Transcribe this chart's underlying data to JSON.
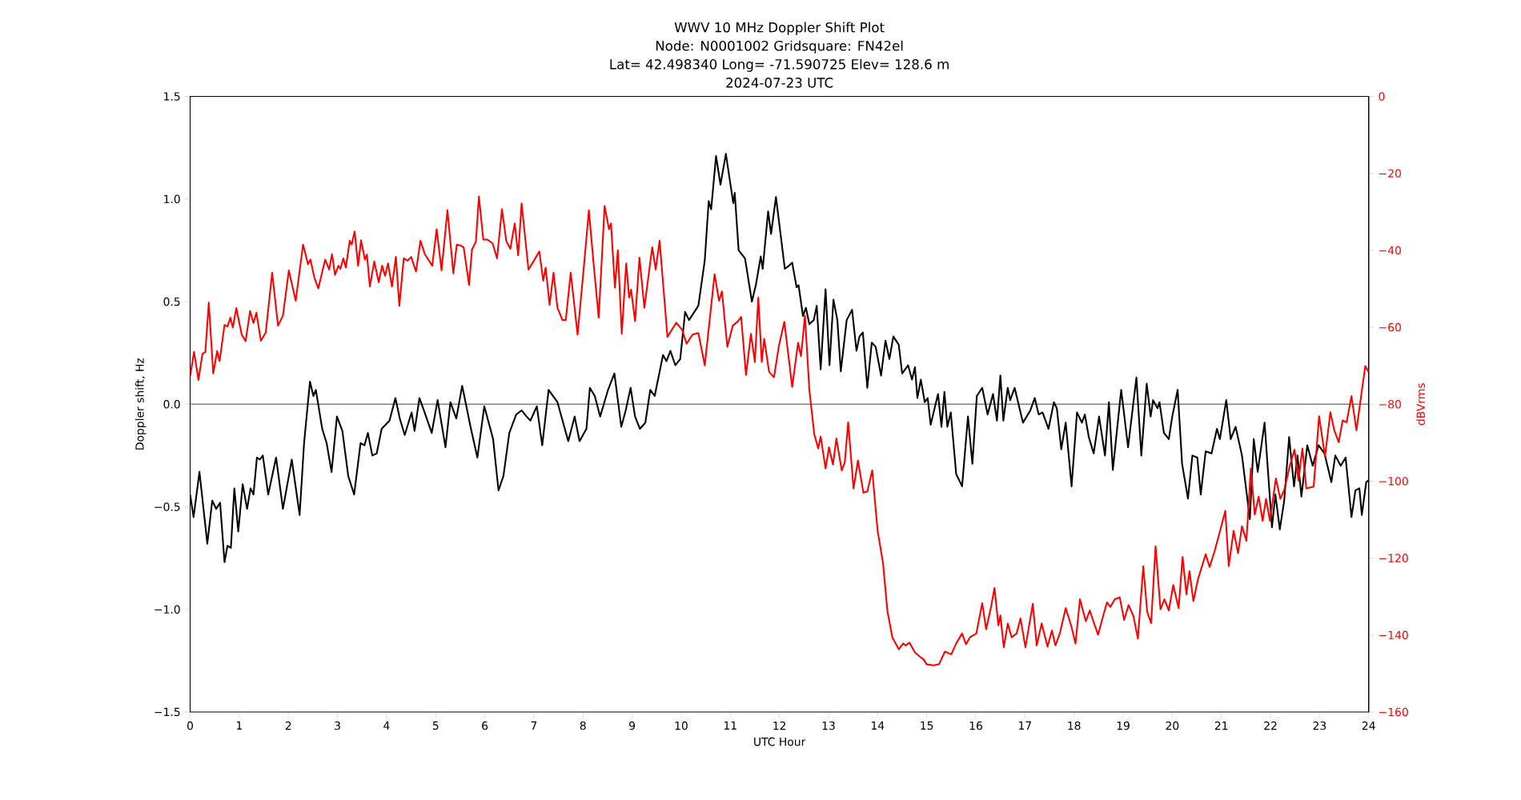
{
  "chart_data": {
    "type": "line",
    "title": "WWV 10 MHz Doppler Shift Plot",
    "subtitle": "Node:  N0001002     Gridsquare:  FN42el",
    "annotations": [
      "Lat= 42.498340    Long= -71.590725    Elev= 128.6 m",
      "2024-07-23  UTC"
    ],
    "xlabel": "UTC Hour",
    "ylabel": "Doppler shift, Hz",
    "y2label": "dBVrms",
    "xlim": [
      0,
      24
    ],
    "xticks": [
      0,
      1,
      2,
      3,
      4,
      5,
      6,
      7,
      8,
      9,
      10,
      11,
      12,
      13,
      14,
      15,
      16,
      17,
      18,
      19,
      20,
      21,
      22,
      23,
      24
    ],
    "ylim": [
      -1.5,
      1.5
    ],
    "yticks": [
      {
        "value": -1.5,
        "label": "−1.5"
      },
      {
        "value": -1.0,
        "label": "−1.0"
      },
      {
        "value": -0.5,
        "label": "−0.5"
      },
      {
        "value": 0,
        "label": "0.0"
      },
      {
        "value": 0.5,
        "label": "0.5"
      },
      {
        "value": 1.0,
        "label": "1.0"
      },
      {
        "value": 1.5,
        "label": "1.5"
      }
    ],
    "y2lim": [
      -160,
      0
    ],
    "y2ticks": [
      {
        "value": -160,
        "label": "−160"
      },
      {
        "value": -140,
        "label": "−140"
      },
      {
        "value": -120,
        "label": "−120"
      },
      {
        "value": -100,
        "label": "−100"
      },
      {
        "value": -80,
        "label": "−80"
      },
      {
        "value": -60,
        "label": "−60"
      },
      {
        "value": -40,
        "label": "−40"
      },
      {
        "value": -20,
        "label": "−20"
      },
      0
    ],
    "ref_lines": [
      {
        "axis": "y",
        "value": 0,
        "color": "#808080"
      }
    ],
    "series": [
      {
        "color": "#000000",
        "axis": "y",
        "x": [
          0,
          0.07,
          0.19,
          0.35,
          0.45,
          0.53,
          0.61,
          0.7,
          0.76,
          0.83,
          0.9,
          0.98,
          1.07,
          1.16,
          1.23,
          1.29,
          1.36,
          1.42,
          1.48,
          1.59,
          1.75,
          1.89,
          2.07,
          2.23,
          2.32,
          2.44,
          2.51,
          2.56,
          2.69,
          2.78,
          2.88,
          2.99,
          3.1,
          3.22,
          3.34,
          3.47,
          3.55,
          3.62,
          3.71,
          3.8,
          3.9,
          4.06,
          4.18,
          4.27,
          4.37,
          4.51,
          4.57,
          4.67,
          4.76,
          4.92,
          5.04,
          5.2,
          5.3,
          5.42,
          5.54,
          5.71,
          5.85,
          5.99,
          6.17,
          6.28,
          6.38,
          6.5,
          6.64,
          6.75,
          6.85,
          6.93,
          7.06,
          7.17,
          7.3,
          7.48,
          7.7,
          7.83,
          7.93,
          8.07,
          8.14,
          8.24,
          8.35,
          8.51,
          8.64,
          8.78,
          8.87,
          8.97,
          9.06,
          9.16,
          9.27,
          9.37,
          9.46,
          9.63,
          9.7,
          9.78,
          9.88,
          9.98,
          10.08,
          10.16,
          10.35,
          10.48,
          10.56,
          10.61,
          10.71,
          10.8,
          10.91,
          11.06,
          11.09,
          11.17,
          11.3,
          11.44,
          11.52,
          11.62,
          11.66,
          11.77,
          11.83,
          11.93,
          12.11,
          12.17,
          12.26,
          12.35,
          12.39,
          12.48,
          12.54,
          12.61,
          12.7,
          12.76,
          12.84,
          12.94,
          13.02,
          13.1,
          13.18,
          13.25,
          13.37,
          13.48,
          13.57,
          13.63,
          13.7,
          13.79,
          13.88,
          13.96,
          14.07,
          14.16,
          14.24,
          14.32,
          14.43,
          14.5,
          14.62,
          14.7,
          14.76,
          14.81,
          14.88,
          14.96,
          15.02,
          15.08,
          15.16,
          15.23,
          15.3,
          15.36,
          15.42,
          15.49,
          15.6,
          15.72,
          15.84,
          15.93,
          16.02,
          16.13,
          16.24,
          16.35,
          16.43,
          16.5,
          16.56,
          16.65,
          16.7,
          16.79,
          16.96,
          17.11,
          17.2,
          17.28,
          17.36,
          17.48,
          17.59,
          17.65,
          17.74,
          17.83,
          17.95,
          18.06,
          18.16,
          18.22,
          18.3,
          18.4,
          18.51,
          18.63,
          18.71,
          18.79,
          18.96,
          19.1,
          19.27,
          19.37,
          19.48,
          19.56,
          19.61,
          19.7,
          19.74,
          19.83,
          19.93,
          20.0,
          20.11,
          20.2,
          20.32,
          20.41,
          20.51,
          20.58,
          20.68,
          20.8,
          20.91,
          20.97,
          21.1,
          21.19,
          21.29,
          21.42,
          21.58,
          21.66,
          21.74,
          21.88,
          22.03,
          22.1,
          22.19,
          22.28,
          22.38,
          22.48,
          22.55,
          22.63,
          22.75,
          22.86,
          22.98,
          23.1,
          23.24,
          23.32,
          23.43,
          23.53,
          23.65,
          23.73,
          23.81,
          23.86,
          23.95,
          24
        ],
        "values": [
          -0.44,
          -0.55,
          -0.33,
          -0.68,
          -0.47,
          -0.51,
          -0.48,
          -0.77,
          -0.69,
          -0.7,
          -0.41,
          -0.62,
          -0.39,
          -0.51,
          -0.41,
          -0.44,
          -0.26,
          -0.27,
          -0.25,
          -0.44,
          -0.26,
          -0.51,
          -0.27,
          -0.54,
          -0.19,
          0.11,
          0.04,
          0.07,
          -0.12,
          -0.19,
          -0.33,
          -0.06,
          -0.13,
          -0.35,
          -0.44,
          -0.19,
          -0.2,
          -0.14,
          -0.25,
          -0.24,
          -0.12,
          -0.08,
          0.03,
          -0.07,
          -0.15,
          -0.04,
          -0.13,
          0.03,
          -0.03,
          -0.14,
          0.02,
          -0.21,
          0.01,
          -0.07,
          0.09,
          -0.11,
          -0.26,
          -0.01,
          -0.17,
          -0.42,
          -0.35,
          -0.14,
          -0.05,
          -0.03,
          -0.06,
          -0.08,
          -0.01,
          -0.2,
          0.07,
          0.01,
          -0.18,
          -0.06,
          -0.18,
          -0.12,
          0.08,
          0.04,
          -0.06,
          0.07,
          0.15,
          -0.11,
          -0.03,
          0.08,
          -0.06,
          -0.12,
          -0.09,
          0.07,
          0.04,
          0.24,
          0.21,
          0.26,
          0.19,
          0.22,
          0.45,
          0.41,
          0.48,
          0.7,
          0.99,
          0.95,
          1.21,
          1.07,
          1.22,
          0.98,
          1.03,
          0.75,
          0.71,
          0.5,
          0.58,
          0.72,
          0.66,
          0.94,
          0.83,
          1.01,
          0.66,
          0.67,
          0.69,
          0.57,
          0.58,
          0.43,
          0.47,
          0.39,
          0.41,
          0.48,
          0.17,
          0.56,
          0.19,
          0.51,
          0.41,
          0.16,
          0.41,
          0.46,
          0.26,
          0.33,
          0.35,
          0.08,
          0.3,
          0.28,
          0.14,
          0.31,
          0.22,
          0.33,
          0.29,
          0.15,
          0.19,
          0.12,
          0.18,
          0.03,
          0.12,
          0.01,
          0.03,
          -0.1,
          -0.02,
          0.05,
          -0.11,
          0.06,
          -0.11,
          -0.04,
          -0.34,
          -0.4,
          -0.06,
          -0.29,
          0.04,
          0.08,
          -0.05,
          0.05,
          -0.08,
          0.14,
          -0.08,
          0.08,
          0.02,
          0.08,
          -0.09,
          -0.03,
          0.03,
          -0.05,
          -0.04,
          -0.12,
          0.01,
          -0.02,
          -0.22,
          -0.09,
          -0.4,
          -0.04,
          -0.09,
          -0.05,
          -0.16,
          -0.24,
          -0.06,
          -0.25,
          0.01,
          -0.32,
          0.07,
          -0.21,
          0.13,
          -0.25,
          0.1,
          -0.06,
          0.02,
          -0.02,
          0.01,
          -0.14,
          -0.17,
          -0.06,
          0.07,
          -0.29,
          -0.46,
          -0.25,
          -0.26,
          -0.44,
          -0.23,
          -0.24,
          -0.12,
          -0.17,
          0.02,
          -0.17,
          -0.11,
          -0.25,
          -0.56,
          -0.17,
          -0.33,
          -0.09,
          -0.6,
          -0.44,
          -0.61,
          -0.47,
          -0.16,
          -0.4,
          -0.25,
          -0.45,
          -0.2,
          -0.3,
          -0.2,
          -0.24,
          -0.38,
          -0.25,
          -0.3,
          -0.26,
          -0.55,
          -0.42,
          -0.41,
          -0.54,
          -0.38,
          -0.37
        ]
      },
      {
        "color": "#ff0000",
        "axis": "y2",
        "x": [
          0,
          0.08,
          0.17,
          0.25,
          0.31,
          0.38,
          0.47,
          0.55,
          0.6,
          0.7,
          0.76,
          0.82,
          0.87,
          0.94,
          1.05,
          1.13,
          1.22,
          1.29,
          1.35,
          1.44,
          1.54,
          1.67,
          1.79,
          1.89,
          2.01,
          2.15,
          2.3,
          2.4,
          2.45,
          2.53,
          2.61,
          2.75,
          2.83,
          2.89,
          2.95,
          3.02,
          3.06,
          3.12,
          3.17,
          3.25,
          3.29,
          3.35,
          3.42,
          3.48,
          3.56,
          3.6,
          3.66,
          3.75,
          3.84,
          3.91,
          3.97,
          4.03,
          4.11,
          4.19,
          4.26,
          4.35,
          4.43,
          4.5,
          4.6,
          4.69,
          4.78,
          4.93,
          5.02,
          5.12,
          5.24,
          5.36,
          5.43,
          5.5,
          5.57,
          5.68,
          5.74,
          5.82,
          5.88,
          5.97,
          6.05,
          6.16,
          6.25,
          6.35,
          6.44,
          6.52,
          6.61,
          6.68,
          6.75,
          6.89,
          7.0,
          7.11,
          7.19,
          7.24,
          7.32,
          7.4,
          7.48,
          7.58,
          7.65,
          7.75,
          7.89,
          8.02,
          8.12,
          8.22,
          8.32,
          8.44,
          8.53,
          8.57,
          8.65,
          8.71,
          8.79,
          8.88,
          8.94,
          8.98,
          9.06,
          9.15,
          9.25,
          9.41,
          9.48,
          9.56,
          9.72,
          9.9,
          10.02,
          10.11,
          10.23,
          10.35,
          10.48,
          10.58,
          10.68,
          10.77,
          10.83,
          10.94,
          11.05,
          11.16,
          11.22,
          11.32,
          11.42,
          11.5,
          11.57,
          11.64,
          11.69,
          11.79,
          11.89,
          11.99,
          12.1,
          12.26,
          12.38,
          12.44,
          12.52,
          12.61,
          12.71,
          12.79,
          12.84,
          12.94,
          13.01,
          13.09,
          13.16,
          13.27,
          13.33,
          13.4,
          13.51,
          13.6,
          13.71,
          13.79,
          13.89,
          14.0,
          14.11,
          14.2,
          14.3,
          14.43,
          14.52,
          14.57,
          14.65,
          14.76,
          14.86,
          14.94,
          15.0,
          15.14,
          15.25,
          15.37,
          15.5,
          15.6,
          15.72,
          15.8,
          15.88,
          16.01,
          16.13,
          16.21,
          16.3,
          16.38,
          16.46,
          16.5,
          16.57,
          16.65,
          16.73,
          16.83,
          16.91,
          17.01,
          17.16,
          17.24,
          17.34,
          17.46,
          17.55,
          17.62,
          17.71,
          17.83,
          17.94,
          18.03,
          18.12,
          18.24,
          18.32,
          18.4,
          18.49,
          18.57,
          18.67,
          18.74,
          18.83,
          18.93,
          19.02,
          19.11,
          19.21,
          19.3,
          19.41,
          19.49,
          19.57,
          19.66,
          19.76,
          19.84,
          19.93,
          20.02,
          20.13,
          20.21,
          20.29,
          20.35,
          20.43,
          20.52,
          20.68,
          20.76,
          20.86,
          20.97,
          21.08,
          21.15,
          21.25,
          21.34,
          21.42,
          21.51,
          21.6,
          21.68,
          21.76,
          21.84,
          21.91,
          21.99,
          22.11,
          22.2,
          22.28,
          22.4,
          22.49,
          22.57,
          22.65,
          22.73,
          22.88,
          22.99,
          23.11,
          23.22,
          23.3,
          23.39,
          23.47,
          23.55,
          23.65,
          23.75,
          23.93,
          24
        ],
        "values": [
          -72.7,
          -66.4,
          -73.7,
          -66.9,
          -66.4,
          -53.6,
          -72,
          -66.2,
          -68.8,
          -59.4,
          -59.8,
          -57.5,
          -60.1,
          -55,
          -61.9,
          -63.6,
          -55.8,
          -58.9,
          -56.2,
          -63.5,
          -61.4,
          -45.8,
          -59.6,
          -57,
          -45.2,
          -53.1,
          -38.5,
          -43.6,
          -42.4,
          -47.1,
          -49.9,
          -42.4,
          -45,
          -41,
          -46.4,
          -44,
          -44.8,
          -42.1,
          -44.5,
          -37.5,
          -38.5,
          -35.1,
          -44,
          -37.4,
          -42.4,
          -41.1,
          -49.4,
          -42.9,
          -48.3,
          -44,
          -46.6,
          -43.4,
          -49.4,
          -41.7,
          -54.4,
          -42.1,
          -42.7,
          -41.7,
          -45.5,
          -37.5,
          -41,
          -44,
          -34.5,
          -45.2,
          -29.6,
          -46,
          -38.5,
          -38.7,
          -39.2,
          -49,
          -39.8,
          -37.7,
          -26,
          -37.2,
          -37.2,
          -38.2,
          -42.1,
          -29.3,
          -37.7,
          -39.6,
          -33,
          -41.3,
          -27.8,
          -45,
          -42.7,
          -40.3,
          -47.9,
          -44.5,
          -54.2,
          -45.8,
          -54.9,
          -58.1,
          -58.1,
          -45.8,
          -61.9,
          -44,
          -29.6,
          -44,
          -57.5,
          -28.5,
          -34.5,
          -33,
          -49.7,
          -40,
          -61.7,
          -43.4,
          -52.3,
          -50.2,
          -58.4,
          -41.9,
          -54.9,
          -39.2,
          -45,
          -37.5,
          -62.5,
          -58.8,
          -60.7,
          -64.3,
          -61.9,
          -61.5,
          -69.9,
          -58.1,
          -46.2,
          -53.1,
          -50.7,
          -65.1,
          -59.6,
          -58.4,
          -57.3,
          -72.4,
          -61.7,
          -69,
          -52.3,
          -69,
          -63,
          -71.6,
          -73,
          -64.8,
          -58.6,
          -75.5,
          -64,
          -67.5,
          -57,
          -76.3,
          -87.8,
          -91.5,
          -88.4,
          -96.7,
          -91.2,
          -95.7,
          -88.9,
          -97.2,
          -95.2,
          -84.7,
          -101.9,
          -94.6,
          -103,
          -102.7,
          -97.2,
          -112.9,
          -121.3,
          -133.8,
          -140.6,
          -143.7,
          -142.2,
          -142.7,
          -142,
          -144.5,
          -145.6,
          -146.4,
          -147.6,
          -147.9,
          -147.6,
          -144.3,
          -145,
          -142.2,
          -139.6,
          -142.4,
          -140.6,
          -139.6,
          -131.7,
          -138.5,
          -133.3,
          -127.8,
          -137.5,
          -134.9,
          -143.2,
          -137,
          -140.6,
          -139.6,
          -135.7,
          -143.2,
          -131.9,
          -142.7,
          -137,
          -143,
          -138.8,
          -142.7,
          -139.6,
          -133,
          -137.5,
          -142.2,
          -130.7,
          -136.4,
          -133.6,
          -136.7,
          -139.9,
          -136.1,
          -131.5,
          -132.7,
          -130.7,
          -130.2,
          -136.1,
          -132.2,
          -135.1,
          -140.9,
          -122.1,
          -134,
          -136.9,
          -116.9,
          -133.3,
          -130.7,
          -133.6,
          -127,
          -133,
          -119.7,
          -129.4,
          -123.4,
          -131.2,
          -125.7,
          -119,
          -122.3,
          -118.3,
          -113.1,
          -107.7,
          -122.1,
          -112.9,
          -118.7,
          -111.7,
          -115.5,
          -96.7,
          -108.7,
          -104,
          -110.3,
          -104.6,
          -110.3,
          -99.3,
          -104.6,
          -102.3,
          -95.7,
          -91.8,
          -99.9,
          -91.5,
          -101.9,
          -101.4,
          -83.1,
          -93.6,
          -82.1,
          -86.8,
          -89.9,
          -84.2,
          -84.7,
          -77.9,
          -86.8,
          -70.1,
          -71.6
        ]
      }
    ]
  }
}
